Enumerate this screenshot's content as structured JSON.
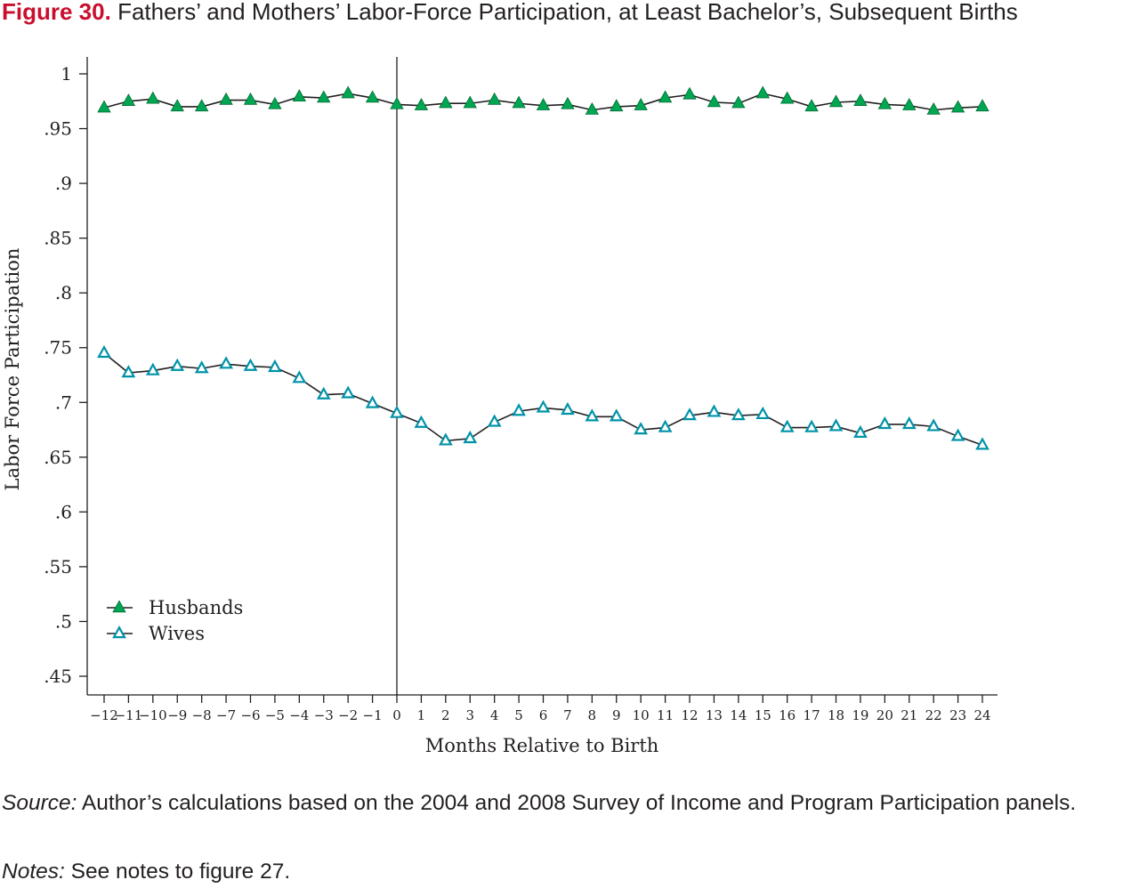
{
  "figure": {
    "number": "Figure 30.",
    "title": "Fathers’ and Mothers’ Labor-Force Participation, at Least Bachelor’s, Subsequent Births"
  },
  "footer": {
    "source_lead": "Source:",
    "source_text": " Author’s calculations based on the 2004 and 2008 Survey of Income and Program Participation panels.",
    "notes_lead": "Notes:",
    "notes_text": " See notes to figure 27."
  },
  "chart_data": {
    "type": "line",
    "title": "",
    "xlabel": "Months Relative to Birth",
    "ylabel": "Labor Force Participation",
    "x": [
      -12,
      -11,
      -10,
      -9,
      -8,
      -7,
      -6,
      -5,
      -4,
      -3,
      -2,
      -1,
      0,
      1,
      2,
      3,
      4,
      5,
      6,
      7,
      8,
      9,
      10,
      11,
      12,
      13,
      14,
      15,
      16,
      17,
      18,
      19,
      20,
      21,
      22,
      23,
      24
    ],
    "x_tick_labels": [
      "−12",
      "−11",
      "−10",
      "−9",
      "−8",
      "−7",
      "−6",
      "−5",
      "−4",
      "−3",
      "−2",
      "−1",
      "0",
      "1",
      "2",
      "3",
      "4",
      "5",
      "6",
      "7",
      "8",
      "9",
      "10",
      "11",
      "12",
      "13",
      "14",
      "15",
      "16",
      "17",
      "18",
      "19",
      "20",
      "21",
      "22",
      "23",
      "24"
    ],
    "y_ticks": [
      1,
      0.95,
      0.9,
      0.85,
      0.8,
      0.75,
      0.7,
      0.65,
      0.6,
      0.55,
      0.5,
      0.45
    ],
    "y_tick_labels": [
      "1",
      ".95",
      ".9",
      ".85",
      ".8",
      ".75",
      ".7",
      ".65",
      ".6",
      ".55",
      ".5",
      ".45"
    ],
    "xlim": [
      -12,
      24
    ],
    "ylim": [
      0.435,
      1.015
    ],
    "reference_line_x": 0,
    "grid": false,
    "legend_position": "bottom-left",
    "series": [
      {
        "name": "Husbands",
        "color": "#00a651",
        "marker": "filled-triangle",
        "values": [
          0.969,
          0.975,
          0.977,
          0.97,
          0.97,
          0.976,
          0.976,
          0.972,
          0.979,
          0.978,
          0.982,
          0.978,
          0.972,
          0.971,
          0.973,
          0.973,
          0.976,
          0.973,
          0.971,
          0.972,
          0.967,
          0.97,
          0.971,
          0.978,
          0.981,
          0.974,
          0.973,
          0.982,
          0.977,
          0.97,
          0.974,
          0.975,
          0.972,
          0.971,
          0.967,
          0.969,
          0.97
        ]
      },
      {
        "name": "Wives",
        "color": "#0093a8",
        "marker": "hollow-triangle",
        "values": [
          0.745,
          0.727,
          0.729,
          0.733,
          0.731,
          0.735,
          0.733,
          0.732,
          0.722,
          0.707,
          0.708,
          0.699,
          0.69,
          0.681,
          0.665,
          0.667,
          0.682,
          0.692,
          0.695,
          0.693,
          0.687,
          0.687,
          0.675,
          0.677,
          0.688,
          0.691,
          0.688,
          0.689,
          0.677,
          0.677,
          0.678,
          0.672,
          0.68,
          0.68,
          0.678,
          0.669,
          0.661
        ]
      }
    ]
  }
}
